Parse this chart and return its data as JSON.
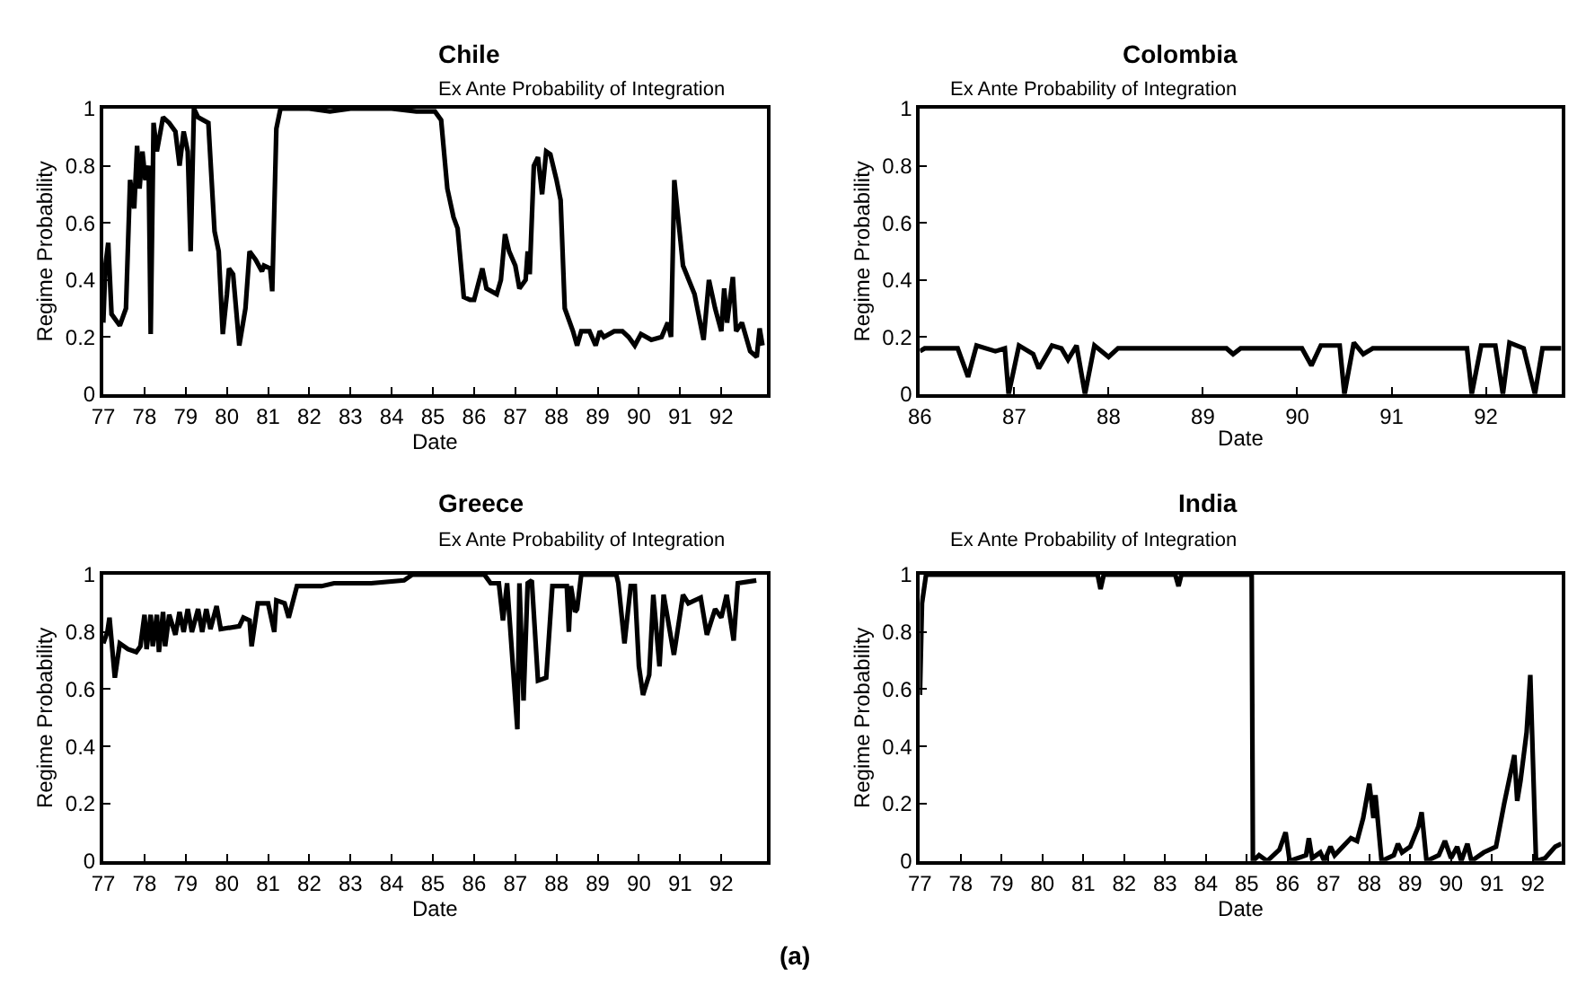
{
  "chart_data": [
    {
      "type": "line",
      "title": "Chile",
      "subtitle": "Ex Ante Probability of Integration",
      "xlabel": "Date",
      "ylabel": "Regime Probability",
      "color": "#000000",
      "x": [
        77.0,
        77.05,
        77.12,
        77.2,
        77.4,
        77.55,
        77.65,
        77.75,
        77.82,
        77.88,
        77.95,
        78.02,
        78.1,
        78.15,
        78.22,
        78.3,
        78.45,
        78.6,
        78.75,
        78.85,
        78.95,
        79.05,
        79.12,
        79.2,
        79.3,
        79.55,
        79.7,
        79.8,
        79.9,
        80.0,
        80.05,
        80.15,
        80.3,
        80.45,
        80.55,
        80.7,
        80.85,
        80.9,
        81.05,
        81.1,
        81.2,
        81.3,
        82.0,
        82.5,
        83.0,
        84.0,
        84.6,
        85.05,
        85.2,
        85.35,
        85.5,
        85.6,
        85.75,
        85.9,
        86.0,
        86.2,
        86.3,
        86.55,
        86.65,
        86.75,
        86.85,
        87.0,
        87.1,
        87.25,
        87.3,
        87.35,
        87.45,
        87.55,
        87.65,
        87.75,
        87.85,
        88.0,
        88.1,
        88.2,
        88.4,
        88.5,
        88.6,
        88.8,
        88.95,
        89.05,
        89.15,
        89.4,
        89.6,
        89.75,
        89.9,
        90.05,
        90.3,
        90.55,
        90.7,
        90.78,
        90.86,
        91.07,
        91.35,
        91.57,
        91.7,
        91.85,
        92.0,
        92.07,
        92.14,
        92.28,
        92.36,
        92.5,
        92.7,
        92.86,
        92.93,
        93.0
      ],
      "values": [
        0.25,
        0.45,
        0.53,
        0.28,
        0.24,
        0.3,
        0.75,
        0.65,
        0.87,
        0.72,
        0.85,
        0.75,
        0.8,
        0.21,
        0.95,
        0.85,
        0.97,
        0.95,
        0.92,
        0.8,
        0.92,
        0.85,
        0.5,
        1.0,
        0.97,
        0.95,
        0.57,
        0.5,
        0.21,
        0.35,
        0.44,
        0.42,
        0.17,
        0.3,
        0.5,
        0.47,
        0.43,
        0.45,
        0.44,
        0.36,
        0.93,
        1.0,
        1.0,
        0.99,
        1.0,
        1.0,
        0.99,
        0.99,
        0.96,
        0.72,
        0.62,
        0.58,
        0.34,
        0.33,
        0.33,
        0.44,
        0.37,
        0.35,
        0.4,
        0.56,
        0.5,
        0.45,
        0.37,
        0.4,
        0.5,
        0.42,
        0.8,
        0.83,
        0.7,
        0.85,
        0.84,
        0.75,
        0.68,
        0.3,
        0.22,
        0.17,
        0.22,
        0.22,
        0.17,
        0.22,
        0.2,
        0.22,
        0.22,
        0.2,
        0.17,
        0.21,
        0.19,
        0.2,
        0.25,
        0.2,
        0.75,
        0.45,
        0.35,
        0.19,
        0.4,
        0.3,
        0.22,
        0.37,
        0.25,
        0.41,
        0.22,
        0.25,
        0.15,
        0.13,
        0.23,
        0.17
      ],
      "xlim": [
        77,
        93.1
      ],
      "xticks": [
        77,
        78,
        79,
        80,
        81,
        82,
        83,
        84,
        85,
        86,
        87,
        88,
        89,
        90,
        91,
        92
      ],
      "ylim": [
        0,
        1
      ],
      "yticks": [
        0,
        0.2,
        0.4,
        0.6,
        0.8,
        1
      ]
    },
    {
      "type": "line",
      "title": "Colombia",
      "subtitle": "Ex Ante Probability of Integration",
      "xlabel": "Date",
      "ylabel": "Regime Probability",
      "color": "#000000",
      "x": [
        86.0,
        86.05,
        86.4,
        86.51,
        86.6,
        86.8,
        86.9,
        86.94,
        87.05,
        87.2,
        87.26,
        87.4,
        87.5,
        87.57,
        87.66,
        87.75,
        87.85,
        88.0,
        88.1,
        89.25,
        89.32,
        89.4,
        90.05,
        90.15,
        90.25,
        90.45,
        90.5,
        90.6,
        90.7,
        90.8,
        91.8,
        91.85,
        91.95,
        92.1,
        92.18,
        92.25,
        92.4,
        92.52,
        92.6,
        92.8
      ],
      "values": [
        0.15,
        0.16,
        0.16,
        0.06,
        0.17,
        0.15,
        0.16,
        0.0,
        0.17,
        0.14,
        0.09,
        0.17,
        0.16,
        0.12,
        0.17,
        0.0,
        0.17,
        0.13,
        0.16,
        0.16,
        0.14,
        0.16,
        0.16,
        0.1,
        0.17,
        0.17,
        0.0,
        0.18,
        0.14,
        0.16,
        0.16,
        0.0,
        0.17,
        0.17,
        0.0,
        0.18,
        0.16,
        0.0,
        0.16,
        0.16
      ],
      "xlim": [
        86,
        92.8
      ],
      "xticks": [
        86,
        87,
        88,
        89,
        90,
        91,
        92
      ],
      "ylim": [
        0,
        1
      ],
      "yticks": [
        0,
        0.2,
        0.4,
        0.6,
        0.8,
        1
      ]
    },
    {
      "type": "line",
      "title": "Greece",
      "subtitle": "Ex Ante Probability of Integration",
      "xlabel": "Date",
      "ylabel": "Regime Probability",
      "color": "#000000",
      "x": [
        77.0,
        77.1,
        77.15,
        77.28,
        77.4,
        77.6,
        77.8,
        77.9,
        78.0,
        78.05,
        78.15,
        78.2,
        78.3,
        78.35,
        78.45,
        78.5,
        78.6,
        78.75,
        78.85,
        78.95,
        79.05,
        79.15,
        79.3,
        79.4,
        79.5,
        79.6,
        79.75,
        79.85,
        80.3,
        80.4,
        80.55,
        80.6,
        80.75,
        81.0,
        81.15,
        81.2,
        81.4,
        81.5,
        81.7,
        82.3,
        82.6,
        83.5,
        84.3,
        84.5,
        85.0,
        86.0,
        86.25,
        86.4,
        86.6,
        86.7,
        86.8,
        87.05,
        87.1,
        87.2,
        87.3,
        87.4,
        87.55,
        87.75,
        87.9,
        88.25,
        88.3,
        88.35,
        88.45,
        88.5,
        88.6,
        89.45,
        89.5,
        89.65,
        89.8,
        89.9,
        90.0,
        90.1,
        90.25,
        90.35,
        90.5,
        90.6,
        90.85,
        91.07,
        91.2,
        91.5,
        91.65,
        91.85,
        92.0,
        92.13,
        92.3,
        92.4,
        92.85
      ],
      "values": [
        0.76,
        0.8,
        0.85,
        0.64,
        0.76,
        0.74,
        0.73,
        0.75,
        0.86,
        0.74,
        0.86,
        0.75,
        0.86,
        0.73,
        0.87,
        0.75,
        0.86,
        0.79,
        0.87,
        0.8,
        0.88,
        0.8,
        0.88,
        0.8,
        0.88,
        0.81,
        0.89,
        0.81,
        0.82,
        0.85,
        0.84,
        0.75,
        0.9,
        0.9,
        0.8,
        0.91,
        0.9,
        0.85,
        0.96,
        0.96,
        0.97,
        0.97,
        0.98,
        1.0,
        1.0,
        1.0,
        1.0,
        0.97,
        0.97,
        0.84,
        0.97,
        0.46,
        0.97,
        0.56,
        0.97,
        0.98,
        0.63,
        0.64,
        0.96,
        0.96,
        0.8,
        0.96,
        0.87,
        0.88,
        1.0,
        1.0,
        0.97,
        0.76,
        0.96,
        0.96,
        0.68,
        0.58,
        0.65,
        0.93,
        0.68,
        0.93,
        0.72,
        0.93,
        0.9,
        0.92,
        0.79,
        0.88,
        0.85,
        0.93,
        0.77,
        0.97,
        0.98
      ],
      "xlim": [
        77,
        93.1
      ],
      "xticks": [
        77,
        78,
        79,
        80,
        81,
        82,
        83,
        84,
        85,
        86,
        87,
        88,
        89,
        90,
        91,
        92
      ],
      "ylim": [
        0,
        1
      ],
      "yticks": [
        0,
        0.2,
        0.4,
        0.6,
        0.8,
        1
      ]
    },
    {
      "type": "line",
      "title": "India",
      "subtitle": "Ex Ante Probability of Integration",
      "xlabel": "Date",
      "ylabel": "Regime Probability",
      "color": "#000000",
      "x": [
        77.0,
        77.05,
        77.15,
        81.35,
        81.42,
        81.5,
        83.25,
        83.33,
        83.4,
        85.12,
        85.15,
        85.3,
        85.5,
        85.8,
        85.95,
        86.05,
        86.45,
        86.52,
        86.6,
        86.8,
        86.9,
        87.05,
        87.15,
        87.35,
        87.55,
        87.7,
        87.85,
        88.0,
        88.1,
        88.15,
        88.3,
        88.6,
        88.7,
        88.8,
        89.0,
        89.2,
        89.28,
        89.4,
        89.7,
        89.85,
        90.0,
        90.15,
        90.25,
        90.4,
        90.5,
        90.8,
        91.1,
        91.3,
        91.55,
        91.62,
        91.7,
        91.85,
        91.94,
        92.08,
        92.3,
        92.55,
        92.7
      ],
      "values": [
        0.58,
        0.9,
        1.0,
        1.0,
        0.95,
        1.0,
        1.0,
        0.96,
        1.0,
        1.0,
        0.0,
        0.02,
        0.0,
        0.04,
        0.1,
        0.0,
        0.02,
        0.08,
        0.01,
        0.03,
        0.0,
        0.05,
        0.02,
        0.05,
        0.08,
        0.07,
        0.15,
        0.27,
        0.15,
        0.23,
        0.0,
        0.02,
        0.06,
        0.03,
        0.05,
        0.12,
        0.17,
        0.0,
        0.02,
        0.07,
        0.01,
        0.05,
        0.0,
        0.06,
        0.0,
        0.03,
        0.05,
        0.2,
        0.37,
        0.21,
        0.28,
        0.45,
        0.65,
        0.0,
        0.01,
        0.05,
        0.06
      ],
      "xlim": [
        77,
        92.7
      ],
      "xticks": [
        77,
        78,
        79,
        80,
        81,
        82,
        83,
        84,
        85,
        86,
        87,
        88,
        89,
        90,
        91,
        92
      ],
      "ylim": [
        0,
        1
      ],
      "yticks": [
        0,
        0.2,
        0.4,
        0.6,
        0.8,
        1
      ],
      "annotations": [
        "(a)"
      ]
    }
  ]
}
